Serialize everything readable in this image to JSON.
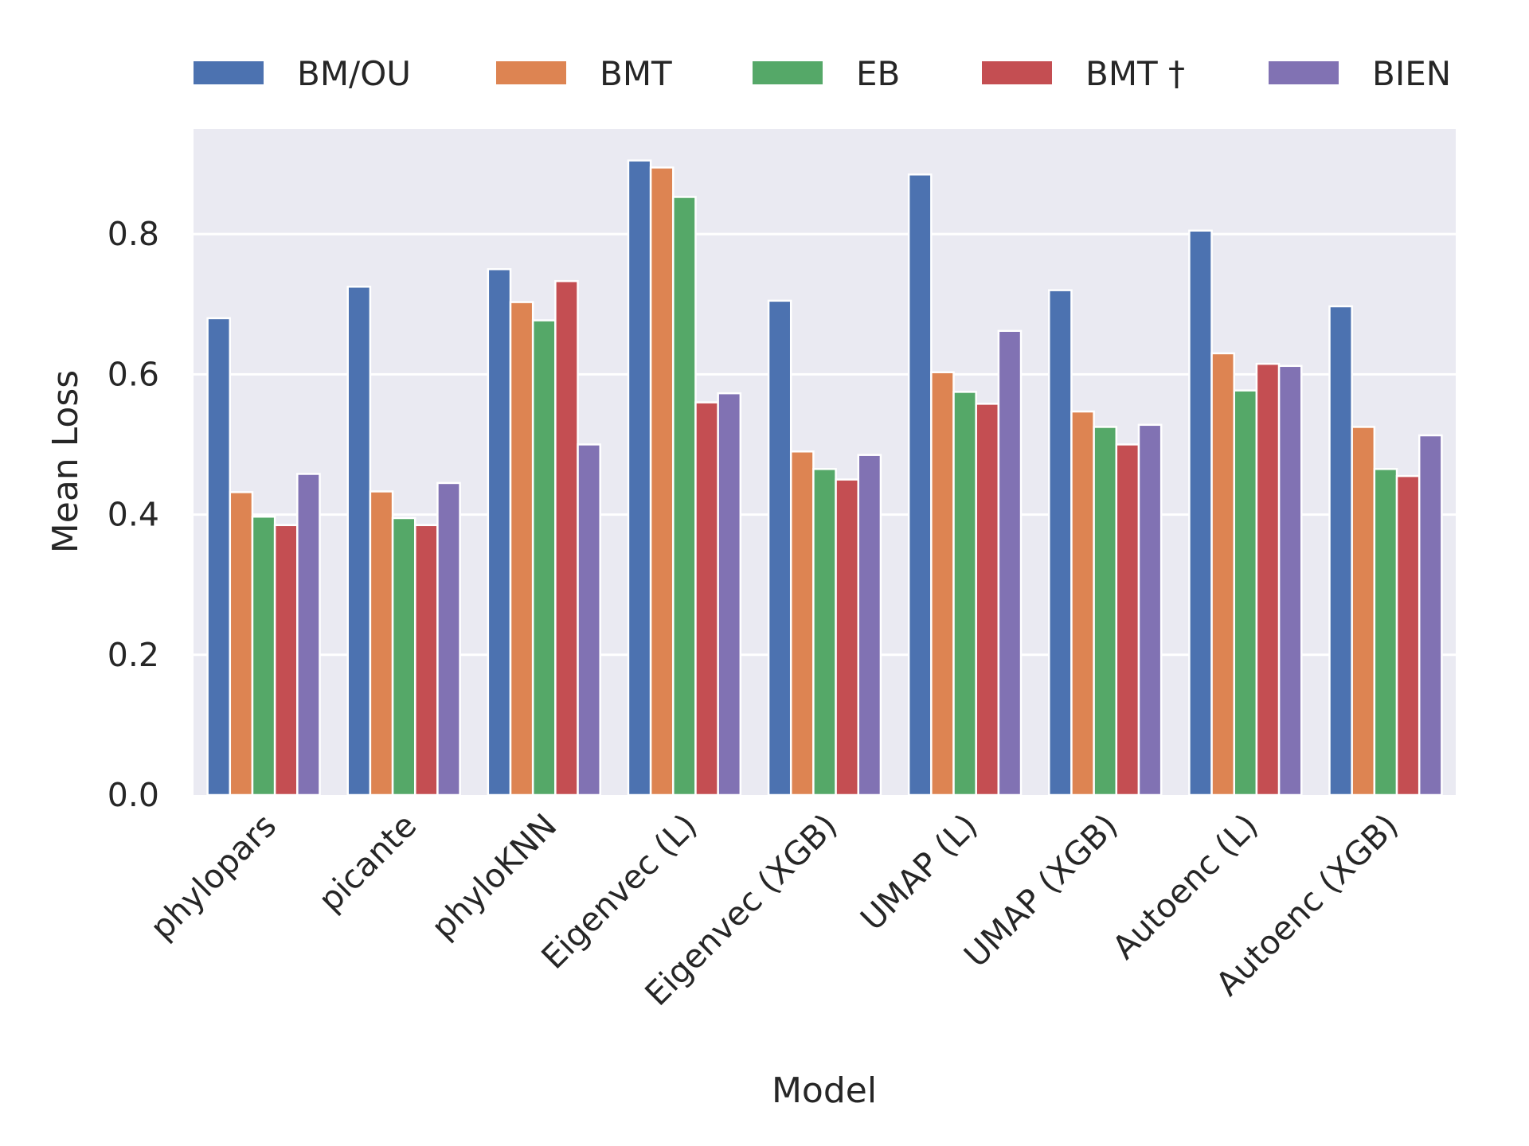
{
  "chart_data": {
    "type": "bar",
    "xlabel": "Model",
    "ylabel": "Mean Loss",
    "ylim": [
      0,
      0.95
    ],
    "yticks": [
      "0.0",
      "0.2",
      "0.4",
      "0.6",
      "0.8"
    ],
    "grid": true,
    "legend_position": "top",
    "categories": [
      "phylopars",
      "picante",
      "phyloKNN",
      "Eigenvec (L)",
      "Eigenvec (XGB)",
      "UMAP (L)",
      "UMAP (XGB)",
      "Autoenc (L)",
      "Autoenc (XGB)"
    ],
    "series": [
      {
        "name": "BM/OU",
        "color": "#4c72b0",
        "values": [
          0.68,
          0.725,
          0.75,
          0.905,
          0.705,
          0.885,
          0.72,
          0.805,
          0.697
        ]
      },
      {
        "name": "BMT",
        "color": "#dd8452",
        "values": [
          0.432,
          0.433,
          0.703,
          0.895,
          0.49,
          0.603,
          0.547,
          0.63,
          0.525
        ]
      },
      {
        "name": "EB",
        "color": "#55a868",
        "values": [
          0.397,
          0.395,
          0.677,
          0.853,
          0.465,
          0.575,
          0.525,
          0.577,
          0.465
        ]
      },
      {
        "name": "BMT †",
        "color": "#c44e52",
        "values": [
          0.385,
          0.385,
          0.733,
          0.56,
          0.45,
          0.558,
          0.5,
          0.615,
          0.455
        ]
      },
      {
        "name": "BIEN",
        "color": "#8172b3",
        "values": [
          0.458,
          0.445,
          0.5,
          0.573,
          0.485,
          0.662,
          0.528,
          0.612,
          0.513
        ]
      }
    ]
  }
}
